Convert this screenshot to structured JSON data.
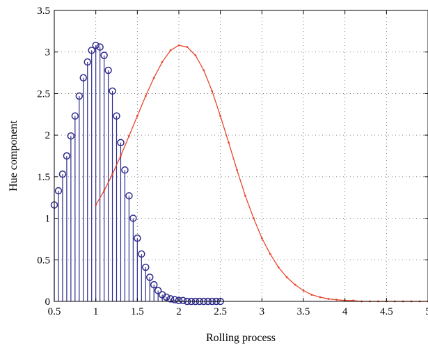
{
  "chart_data": {
    "type": "line",
    "xlabel": "Rolling process",
    "ylabel": "Hue component",
    "xlim": [
      0.5,
      5
    ],
    "ylim": [
      0,
      3.5
    ],
    "grid": true,
    "xticks": [
      0.5,
      1,
      1.5,
      2,
      2.5,
      3,
      3.5,
      4,
      4.5,
      5
    ],
    "xtick_labels": [
      "0.5",
      "1",
      "1.5",
      "2",
      "2.5",
      "3",
      "3.5",
      "4",
      "4.5",
      "5"
    ],
    "yticks": [
      0,
      0.5,
      1,
      1.5,
      2,
      2.5,
      3,
      3.5
    ],
    "ytick_labels": [
      "0",
      "0.5",
      "1",
      "1.5",
      "2",
      "2.5",
      "3",
      "3.5"
    ],
    "series": [
      {
        "style": "stem",
        "color": "#2e2a8c",
        "x": [
          0.5,
          0.55,
          0.6,
          0.65,
          0.7,
          0.75,
          0.8,
          0.85,
          0.9,
          0.95,
          1.0,
          1.05,
          1.1,
          1.15,
          1.2,
          1.25,
          1.3,
          1.35,
          1.4,
          1.45,
          1.5,
          1.55,
          1.6,
          1.65,
          1.7,
          1.75,
          1.8,
          1.85,
          1.9,
          1.95,
          2.0,
          2.05,
          2.1,
          2.15,
          2.2,
          2.25,
          2.3,
          2.35,
          2.4,
          2.45,
          2.5
        ],
        "values": [
          1.16,
          1.33,
          1.53,
          1.75,
          1.99,
          2.23,
          2.47,
          2.69,
          2.88,
          3.02,
          3.08,
          3.06,
          2.96,
          2.78,
          2.53,
          2.23,
          1.91,
          1.58,
          1.27,
          1.0,
          0.76,
          0.57,
          0.41,
          0.29,
          0.2,
          0.13,
          0.08,
          0.05,
          0.03,
          0.02,
          0.01,
          0.01,
          0.0,
          0.0,
          0.0,
          0.0,
          0.0,
          0.0,
          0.0,
          0.0,
          0.0
        ]
      },
      {
        "style": "line",
        "color": "#e8442a",
        "x": [
          1.0,
          1.1,
          1.2,
          1.3,
          1.4,
          1.5,
          1.6,
          1.7,
          1.8,
          1.9,
          2.0,
          2.1,
          2.2,
          2.3,
          2.4,
          2.5,
          2.6,
          2.7,
          2.8,
          2.9,
          3.0,
          3.1,
          3.2,
          3.3,
          3.4,
          3.5,
          3.6,
          3.7,
          3.8,
          3.9,
          4.0,
          4.1,
          4.2,
          4.3,
          4.4,
          4.5,
          4.6,
          4.7,
          4.8,
          4.9,
          5.0
        ],
        "values": [
          1.16,
          1.33,
          1.53,
          1.75,
          1.99,
          2.23,
          2.47,
          2.69,
          2.88,
          3.02,
          3.08,
          3.06,
          2.96,
          2.78,
          2.53,
          2.23,
          1.91,
          1.58,
          1.27,
          1.0,
          0.76,
          0.57,
          0.41,
          0.29,
          0.2,
          0.13,
          0.08,
          0.05,
          0.03,
          0.02,
          0.01,
          0.01,
          0.0,
          0.0,
          0.0,
          0.0,
          0.0,
          0.0,
          0.0,
          0.0,
          0.0
        ]
      }
    ]
  }
}
